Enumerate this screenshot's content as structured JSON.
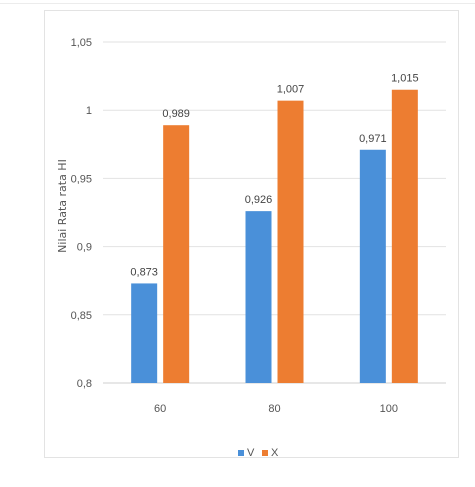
{
  "chart_data": {
    "type": "bar",
    "title": "",
    "xlabel": "",
    "ylabel": "Nilai Rata rata HI",
    "categories": [
      "60",
      "80",
      "100"
    ],
    "series": [
      {
        "name": "V",
        "color": "#4a90d9",
        "values": [
          0.873,
          0.926,
          0.971
        ],
        "labels": [
          "0,873",
          "0,926",
          "0,971"
        ]
      },
      {
        "name": "X",
        "color": "#ed7d31",
        "values": [
          0.989,
          1.007,
          1.015
        ],
        "labels": [
          "0,989",
          "1,007",
          "1,015"
        ]
      }
    ],
    "ylim": [
      0.8,
      1.05
    ],
    "yticks": [
      0.8,
      0.85,
      0.9,
      0.95,
      1,
      1.05
    ],
    "ytick_labels": [
      "0,8",
      "0,85",
      "0,9",
      "0,95",
      "1",
      "1,05"
    ],
    "grid": true,
    "legend_position": "bottom"
  }
}
